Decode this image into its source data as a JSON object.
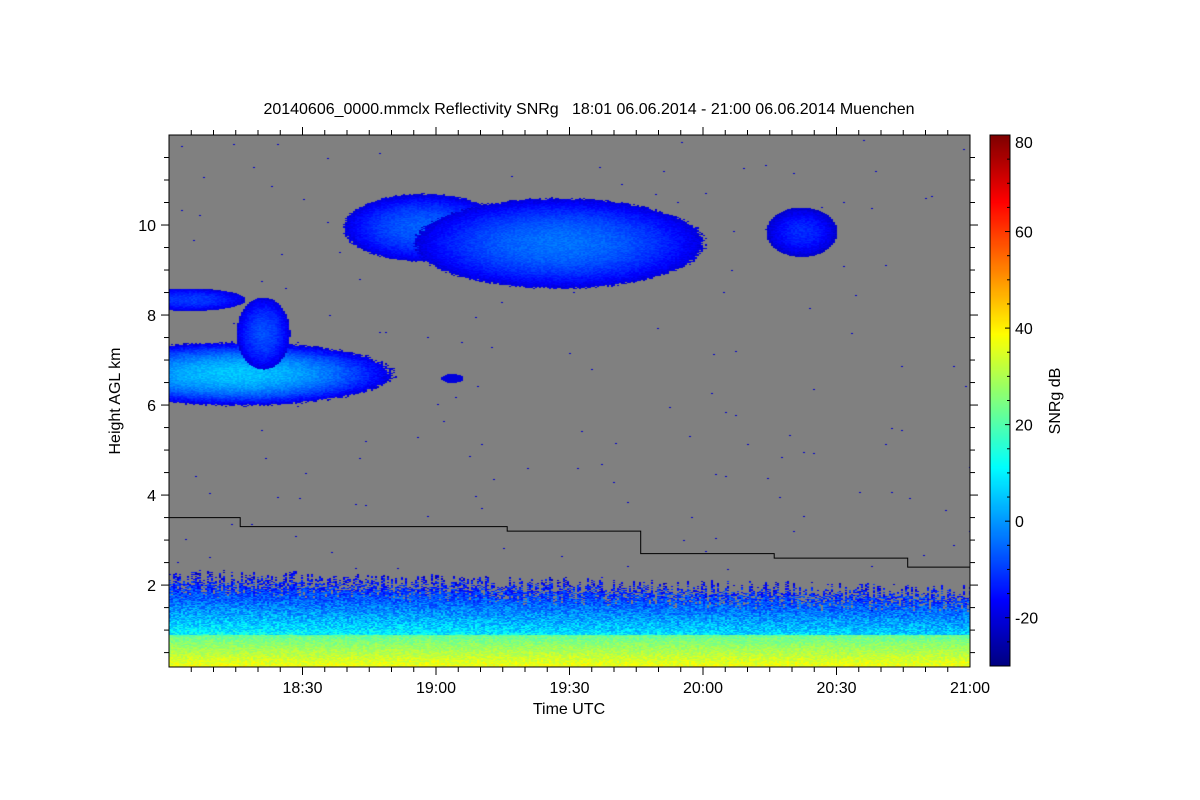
{
  "chart_data": {
    "type": "heatmap",
    "title": "20140606_0000.mmclx Reflectivity SNRg   18:01 06.06.2014 - 21:00 06.06.2014 Muenchen",
    "xlabel": "Time UTC",
    "ylabel": "Height AGL km",
    "xlim_minutes_after_1800": [
      0,
      180
    ],
    "ylim": [
      0.18,
      12
    ],
    "x_ticks": [
      {
        "label": "18:30",
        "minutes": 30
      },
      {
        "label": "19:00",
        "minutes": 60
      },
      {
        "label": "19:30",
        "minutes": 90
      },
      {
        "label": "20:00",
        "minutes": 120
      },
      {
        "label": "20:30",
        "minutes": 150
      },
      {
        "label": "21:00",
        "minutes": 180
      }
    ],
    "y_ticks": [
      {
        "label": "2",
        "value": 2
      },
      {
        "label": "4",
        "value": 4
      },
      {
        "label": "6",
        "value": 6
      },
      {
        "label": "8",
        "value": 8
      },
      {
        "label": "10",
        "value": 10
      }
    ],
    "colorbar": {
      "label": "SNRg dB",
      "range": [
        -30,
        80
      ],
      "ticks": [
        {
          "label": "-20",
          "value": -20
        },
        {
          "label": "0",
          "value": 0
        },
        {
          "label": "20",
          "value": 20
        },
        {
          "label": "40",
          "value": 40
        },
        {
          "label": "60",
          "value": 60
        },
        {
          "label": "80",
          "value": 80
        }
      ]
    },
    "background_color": "#808080",
    "threshold_line": {
      "description_units": "minutes after 18:00 vs km",
      "steps": [
        {
          "t0": 0,
          "t1": 16,
          "h": 3.5
        },
        {
          "t0": 16,
          "t1": 76,
          "h": 3.3
        },
        {
          "t0": 76,
          "t1": 106,
          "h": 3.2
        },
        {
          "t0": 106,
          "t1": 136,
          "h": 2.7
        },
        {
          "t0": 136,
          "t1": 166,
          "h": 2.6
        },
        {
          "t0": 166,
          "t1": 180,
          "h": 2.4
        }
      ]
    },
    "echo_regions": [
      {
        "name": "boundary-layer",
        "t0": 0,
        "t1": 180,
        "h0": 0.18,
        "h1": 2.2,
        "snr_min": -20,
        "snr_max": 40
      },
      {
        "name": "mid-cloud",
        "t0": 0,
        "t1": 49,
        "h0": 6.0,
        "h1": 7.5,
        "snr_min": -20,
        "snr_max": 5
      },
      {
        "name": "mid-cloud-tower",
        "t0": 16,
        "t1": 27,
        "h0": 7.0,
        "h1": 8.4,
        "snr_min": -20,
        "snr_max": -5
      },
      {
        "name": "cloud-8km",
        "t0": 0,
        "t1": 17,
        "h0": 8.1,
        "h1": 8.6,
        "snr_min": -20,
        "snr_max": -8
      },
      {
        "name": "upper-cloud",
        "t0": 39,
        "t1": 120,
        "h0": 8.4,
        "h1": 10.7,
        "snr_min": -22,
        "snr_max": -5
      },
      {
        "name": "upper-cloud-east",
        "t0": 134,
        "t1": 150,
        "h0": 9.3,
        "h1": 10.4,
        "snr_min": -22,
        "snr_max": -10
      },
      {
        "name": "small-echo",
        "t0": 61,
        "t1": 66,
        "h0": 6.5,
        "h1": 6.7,
        "snr_min": -22,
        "snr_max": -15
      }
    ]
  }
}
